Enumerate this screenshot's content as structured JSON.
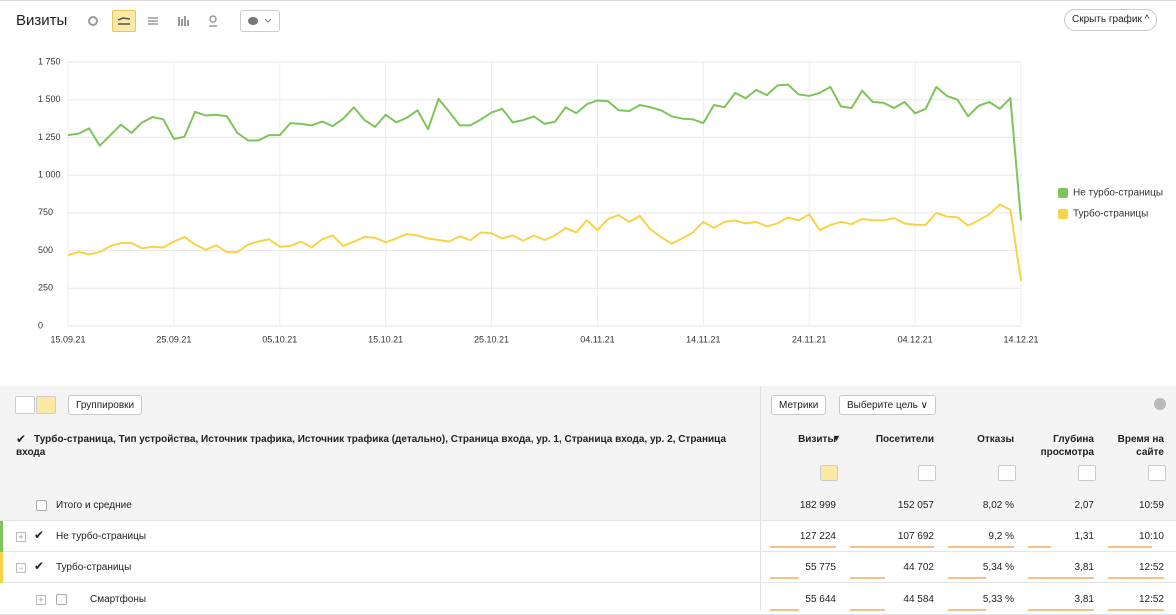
{
  "header": {
    "title": "Визиты",
    "hide_chart": "Скрыть график"
  },
  "chart_data": {
    "type": "line",
    "categories": [
      "15.09.21",
      null,
      null,
      null,
      null,
      null,
      null,
      null,
      null,
      null,
      "25.09.21",
      null,
      null,
      null,
      null,
      null,
      null,
      null,
      null,
      null,
      "05.10.21",
      null,
      null,
      null,
      null,
      null,
      null,
      null,
      null,
      null,
      "15.10.21",
      null,
      null,
      null,
      null,
      null,
      null,
      null,
      null,
      null,
      "25.10.21",
      null,
      null,
      null,
      null,
      null,
      null,
      null,
      null,
      null,
      "04.11.21",
      null,
      null,
      null,
      null,
      null,
      null,
      null,
      null,
      null,
      "14.11.21",
      null,
      null,
      null,
      null,
      null,
      null,
      null,
      null,
      null,
      "24.11.21",
      null,
      null,
      null,
      null,
      null,
      null,
      null,
      null,
      null,
      "04.12.21",
      null,
      null,
      null,
      null,
      null,
      null,
      null,
      null,
      null,
      "14.12.21"
    ],
    "series": [
      {
        "name": "Не турбо-страницы",
        "color": "#7fc35b",
        "values": [
          1265,
          1275,
          1310,
          1195,
          1265,
          1335,
          1280,
          1350,
          1385,
          1370,
          1240,
          1255,
          1420,
          1395,
          1400,
          1390,
          1280,
          1230,
          1230,
          1265,
          1265,
          1345,
          1340,
          1330,
          1355,
          1325,
          1375,
          1450,
          1365,
          1320,
          1400,
          1350,
          1380,
          1430,
          1305,
          1505,
          1420,
          1330,
          1330,
          1370,
          1415,
          1440,
          1350,
          1365,
          1390,
          1340,
          1355,
          1450,
          1410,
          1470,
          1495,
          1490,
          1430,
          1425,
          1465,
          1450,
          1430,
          1390,
          1375,
          1370,
          1345,
          1465,
          1450,
          1545,
          1510,
          1565,
          1530,
          1595,
          1600,
          1535,
          1525,
          1545,
          1585,
          1455,
          1445,
          1560,
          1485,
          1480,
          1445,
          1485,
          1410,
          1440,
          1585,
          1525,
          1500,
          1390,
          1460,
          1485,
          1440,
          1510,
          700
        ]
      },
      {
        "name": "Турбо-страницы",
        "color": "#f7d348",
        "values": [
          470,
          490,
          475,
          490,
          530,
          550,
          550,
          515,
          525,
          520,
          560,
          590,
          540,
          505,
          535,
          490,
          490,
          540,
          560,
          575,
          525,
          530,
          560,
          520,
          575,
          600,
          530,
          560,
          590,
          585,
          555,
          580,
          610,
          600,
          580,
          570,
          560,
          595,
          570,
          620,
          615,
          580,
          600,
          565,
          600,
          570,
          600,
          650,
          620,
          700,
          635,
          710,
          735,
          690,
          730,
          640,
          590,
          545,
          580,
          620,
          690,
          650,
          690,
          700,
          680,
          690,
          660,
          680,
          720,
          700,
          740,
          635,
          670,
          690,
          675,
          710,
          700,
          700,
          715,
          680,
          670,
          670,
          750,
          725,
          720,
          665,
          700,
          740,
          805,
          770,
          300
        ]
      }
    ],
    "ylim": [
      0,
      1750
    ],
    "yticks": [
      0,
      250,
      500,
      750,
      {
        "value": 1000,
        "label": "1 000"
      },
      {
        "value": 1250,
        "label": "1 250"
      },
      {
        "value": 1500,
        "label": "1 500"
      },
      {
        "value": 1750,
        "label": "1 750"
      }
    ],
    "grid": true,
    "legend": "right"
  },
  "table": {
    "toolbar": {
      "groupings": "Группировки",
      "metrics": "Метрики",
      "goal": "Выберите цель"
    },
    "dimension_header": "Турбо-страница, Тип устройства, Источник трафика, Источник трафика (детально), Страница входа, ур. 1, Страница входа, ур. 2, Страница входа",
    "columns": [
      "Визиты",
      "Посетители",
      "Отказы",
      "Глубина просмотра",
      "Время на сайте"
    ],
    "rows": [
      {
        "label": "Итого и средние",
        "cells": [
          "182 999",
          "152 057",
          "8,02 %",
          "2,07",
          "10:59"
        ]
      },
      {
        "label": "Не турбо-страницы",
        "cells": [
          "127 224",
          "107 692",
          "9,2 %",
          "1,31",
          "10:10"
        ]
      },
      {
        "label": "Турбо-страницы",
        "cells": [
          "55 775",
          "44 702",
          "5,34 %",
          "3,81",
          "12:52"
        ]
      },
      {
        "label": "Смартфоны",
        "cells": [
          "55 644",
          "44 584",
          "5,33 %",
          "3,81",
          "12:52"
        ]
      }
    ]
  }
}
